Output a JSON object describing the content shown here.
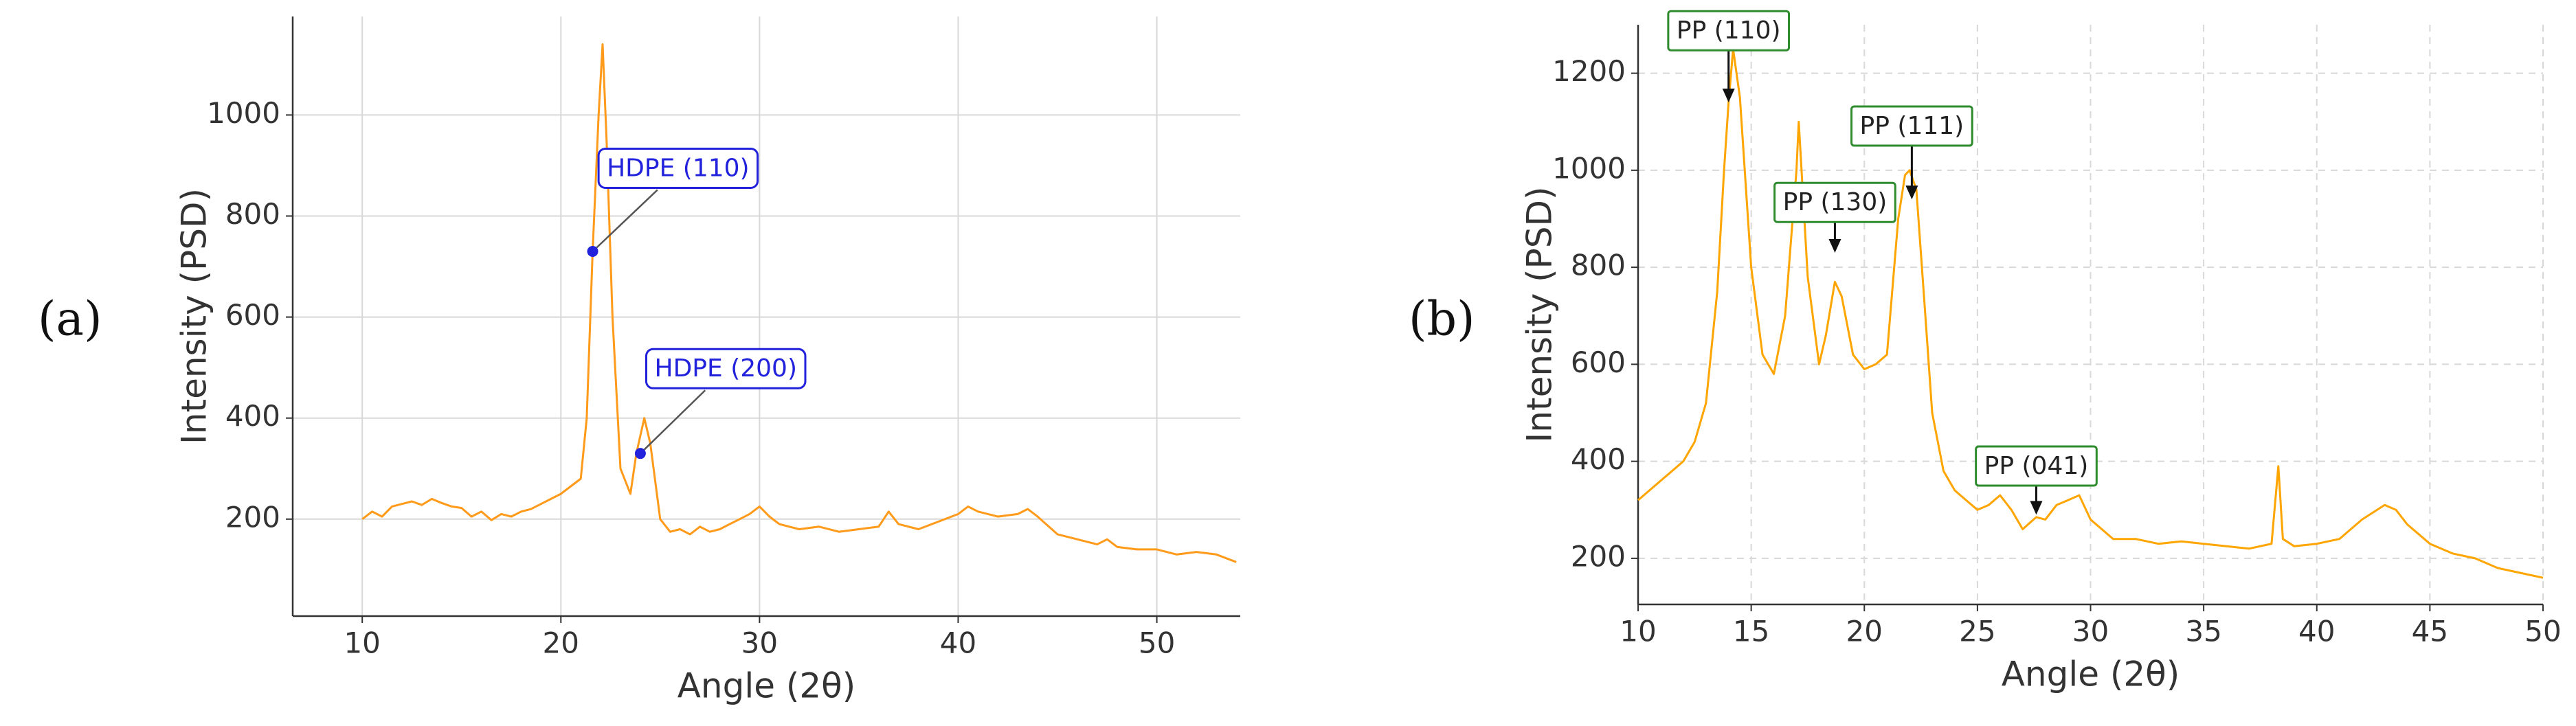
{
  "chart_data": [
    {
      "type": "line",
      "panel_label": "(a)",
      "xlabel": "Angle (2θ)",
      "ylabel": "Intensity (PSD)",
      "color": "#ff9a1a",
      "grid": "solid",
      "annotation_color": "#2222dd",
      "xlim": [
        6.5,
        54.2
      ],
      "ylim": [
        8,
        1195
      ],
      "xticks": [
        10,
        20,
        30,
        40,
        50
      ],
      "yticks": [
        200,
        400,
        600,
        800,
        1000
      ],
      "x": [
        10,
        10.5,
        11,
        11.5,
        12,
        12.5,
        13,
        13.5,
        14,
        14.5,
        15,
        15.5,
        16,
        16.5,
        17,
        17.5,
        18,
        18.5,
        19,
        19.5,
        20,
        20.5,
        21,
        21.3,
        21.6,
        21.9,
        22.1,
        22.3,
        22.6,
        23,
        23.5,
        23.8,
        24.2,
        24.5,
        25,
        25.5,
        26,
        26.5,
        27,
        27.5,
        28,
        28.5,
        29,
        29.5,
        30,
        30.5,
        31,
        31.5,
        32,
        33,
        34,
        35,
        36,
        36.5,
        37,
        38,
        39,
        40,
        40.5,
        41,
        42,
        43,
        43.5,
        44,
        45,
        46,
        47,
        47.5,
        48,
        49,
        50,
        51,
        52,
        53,
        54
      ],
      "values": [
        200,
        215,
        205,
        225,
        230,
        235,
        228,
        240,
        232,
        225,
        222,
        205,
        215,
        198,
        210,
        205,
        215,
        220,
        230,
        240,
        250,
        265,
        280,
        400,
        730,
        1000,
        1140,
        950,
        600,
        300,
        250,
        330,
        400,
        350,
        200,
        175,
        180,
        170,
        185,
        175,
        180,
        190,
        200,
        210,
        225,
        205,
        190,
        185,
        180,
        185,
        175,
        180,
        185,
        215,
        190,
        180,
        195,
        210,
        225,
        215,
        205,
        210,
        220,
        205,
        170,
        160,
        150,
        160,
        145,
        140,
        140,
        130,
        135,
        130,
        115
      ],
      "annotations": [
        {
          "text": "HDPE (110)",
          "x": 21.6,
          "y": 730
        },
        {
          "text": "HDPE (200)",
          "x": 24,
          "y": 330
        }
      ]
    },
    {
      "type": "line",
      "panel_label": "(b)",
      "xlabel": "Angle (2θ)",
      "ylabel": "Intensity (PSD)",
      "color": "#ffa500",
      "grid": "dashed",
      "annotation_color": "#2e8b2e",
      "xlim": [
        10,
        50
      ],
      "ylim": [
        105,
        1300
      ],
      "xticks": [
        10,
        15,
        20,
        25,
        30,
        35,
        40,
        45,
        50
      ],
      "yticks": [
        200,
        400,
        600,
        800,
        1000,
        1200
      ],
      "x": [
        10,
        10.5,
        11,
        11.5,
        12,
        12.5,
        13,
        13.5,
        13.8,
        14,
        14.2,
        14.5,
        15,
        15.5,
        16,
        16.5,
        17,
        17.1,
        17.5,
        18,
        18.3,
        18.7,
        19,
        19.5,
        20,
        20.5,
        21,
        21.5,
        21.8,
        22,
        22.3,
        22.7,
        23,
        23.5,
        24,
        24.5,
        25,
        25.5,
        26,
        26.5,
        27,
        27.6,
        28,
        28.5,
        29,
        29.5,
        30,
        31,
        32,
        33,
        34,
        35,
        36,
        37,
        38,
        38.3,
        38.5,
        39,
        40,
        41,
        42,
        43,
        43.5,
        44,
        45,
        46,
        47,
        48,
        49,
        50
      ],
      "values": [
        320,
        340,
        360,
        380,
        400,
        440,
        520,
        750,
        1000,
        1140,
        1250,
        1150,
        800,
        620,
        580,
        700,
        1000,
        1100,
        780,
        600,
        660,
        770,
        740,
        620,
        590,
        600,
        620,
        900,
        990,
        1000,
        960,
        700,
        500,
        380,
        340,
        320,
        300,
        310,
        330,
        300,
        260,
        285,
        280,
        310,
        320,
        330,
        280,
        240,
        240,
        230,
        235,
        230,
        225,
        220,
        230,
        390,
        240,
        225,
        230,
        240,
        280,
        310,
        300,
        270,
        230,
        210,
        200,
        180,
        170,
        160
      ],
      "annotations": [
        {
          "text": "PP (110)",
          "x": 14,
          "y": 1140
        },
        {
          "text": "PP (130)",
          "x": 18.7,
          "y": 830
        },
        {
          "text": "PP (111)",
          "x": 22.1,
          "y": 940
        },
        {
          "text": "PP (041)",
          "x": 27.6,
          "y": 290
        }
      ]
    }
  ]
}
